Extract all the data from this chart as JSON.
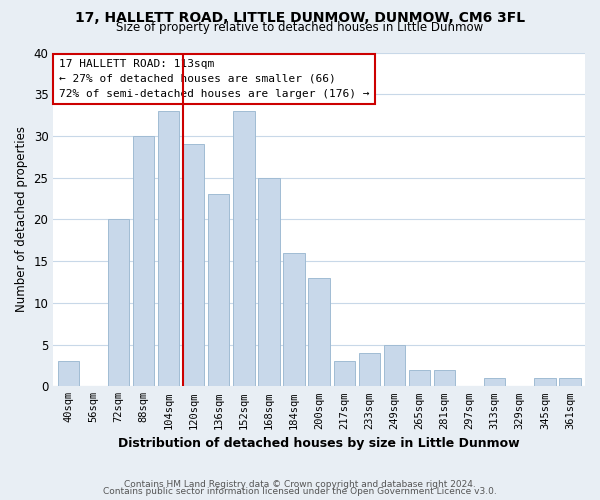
{
  "title": "17, HALLETT ROAD, LITTLE DUNMOW, DUNMOW, CM6 3FL",
  "subtitle": "Size of property relative to detached houses in Little Dunmow",
  "xlabel": "Distribution of detached houses by size in Little Dunmow",
  "ylabel": "Number of detached properties",
  "bar_labels": [
    "40sqm",
    "56sqm",
    "72sqm",
    "88sqm",
    "104sqm",
    "120sqm",
    "136sqm",
    "152sqm",
    "168sqm",
    "184sqm",
    "200sqm",
    "217sqm",
    "233sqm",
    "249sqm",
    "265sqm",
    "281sqm",
    "297sqm",
    "313sqm",
    "329sqm",
    "345sqm",
    "361sqm"
  ],
  "bar_values": [
    3,
    0,
    20,
    30,
    33,
    29,
    23,
    33,
    25,
    16,
    13,
    3,
    4,
    5,
    2,
    2,
    0,
    1,
    0,
    1,
    1
  ],
  "bar_color": "#c8d8ea",
  "bar_edge_color": "#a0bcd4",
  "marker_color": "#cc0000",
  "annotation_line1": "17 HALLETT ROAD: 113sqm",
  "annotation_line2": "← 27% of detached houses are smaller (66)",
  "annotation_line3": "72% of semi-detached houses are larger (176) →",
  "ylim": [
    0,
    40
  ],
  "yticks": [
    0,
    5,
    10,
    15,
    20,
    25,
    30,
    35,
    40
  ],
  "footer_line1": "Contains HM Land Registry data © Crown copyright and database right 2024.",
  "footer_line2": "Contains public sector information licensed under the Open Government Licence v3.0.",
  "bg_color": "#e8eef4",
  "plot_bg_color": "#ffffff",
  "grid_color": "#c8d8e8"
}
